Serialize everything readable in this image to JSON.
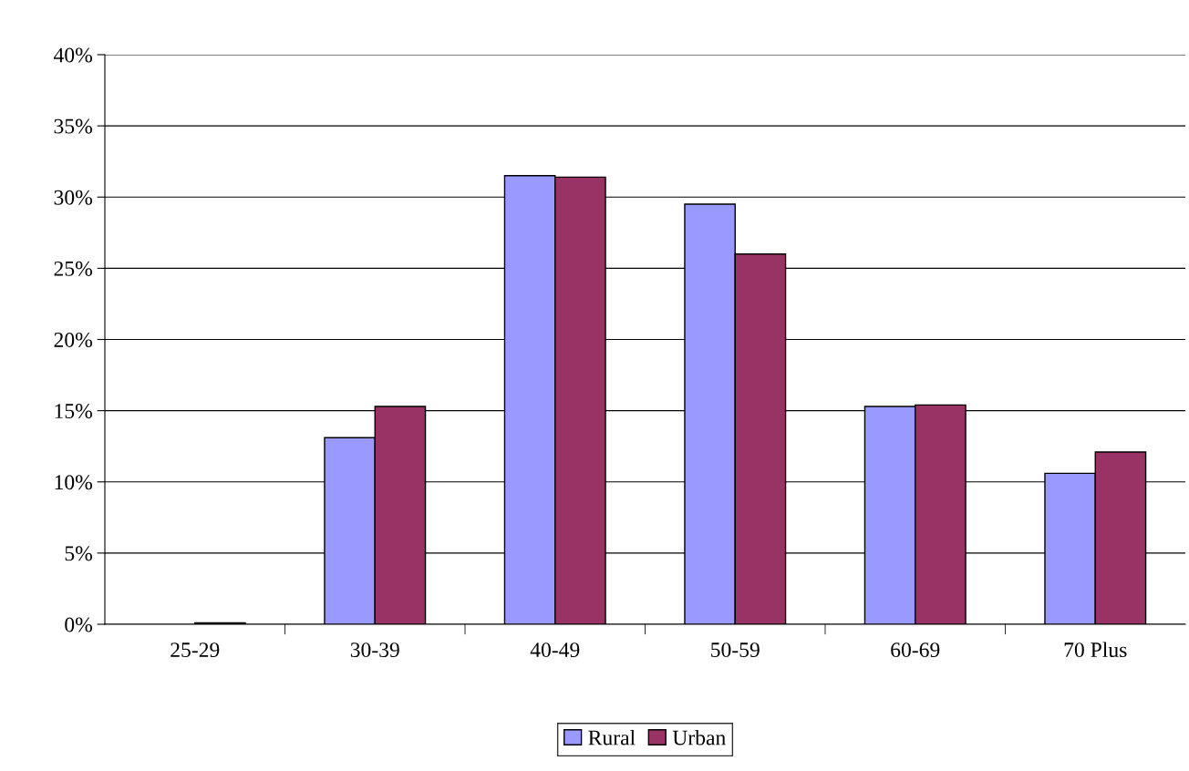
{
  "chart_data": {
    "type": "bar",
    "categories": [
      "25-29",
      "30-39",
      "40-49",
      "50-59",
      "60-69",
      "70 Plus"
    ],
    "series": [
      {
        "name": "Rural",
        "color": "#9999ff",
        "values": [
          null,
          13.1,
          31.5,
          29.5,
          15.3,
          10.6
        ]
      },
      {
        "name": "Urban",
        "color": "#993366",
        "values": [
          0.1,
          15.3,
          31.4,
          26.0,
          15.4,
          12.1
        ]
      }
    ],
    "ylim": [
      0,
      40
    ],
    "yticks": [
      {
        "value": 0,
        "label": "0%"
      },
      {
        "value": 5,
        "label": "5%"
      },
      {
        "value": 10,
        "label": "10%"
      },
      {
        "value": 15,
        "label": "15%"
      },
      {
        "value": 20,
        "label": "20%"
      },
      {
        "value": 25,
        "label": "25%"
      },
      {
        "value": 30,
        "label": "30%"
      },
      {
        "value": 35,
        "label": "35%"
      },
      {
        "value": 40,
        "label": "40%"
      }
    ],
    "grid": "y",
    "legend": "bottom"
  }
}
